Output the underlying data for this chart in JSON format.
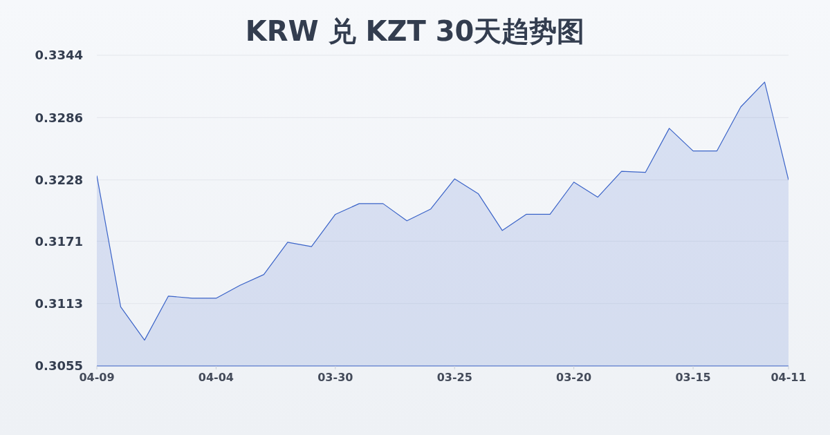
{
  "chart_data": {
    "type": "area",
    "title": "KRW 兑 KZT 30天趋势图",
    "categories": [
      "04-09",
      null,
      null,
      null,
      null,
      "04-04",
      null,
      null,
      null,
      null,
      "03-30",
      null,
      null,
      null,
      null,
      "03-25",
      null,
      null,
      null,
      null,
      "03-20",
      null,
      null,
      null,
      null,
      "03-15",
      null,
      null,
      null,
      "04-11"
    ],
    "values": [
      0.3232,
      0.311,
      0.3079,
      0.312,
      0.3118,
      0.3118,
      0.313,
      0.314,
      0.317,
      0.3166,
      0.3196,
      0.3206,
      0.3206,
      0.319,
      0.3201,
      0.3229,
      0.3215,
      0.3181,
      0.3196,
      0.3196,
      0.3226,
      0.3212,
      0.3236,
      0.3235,
      0.3276,
      0.3255,
      0.3255,
      0.3296,
      0.3319,
      0.3228
    ],
    "color": "#3a63c8",
    "ylim": [
      0.3055,
      0.3344
    ],
    "yticks": [
      0.3055,
      0.3113,
      0.3171,
      0.3228,
      0.3286,
      0.3344
    ],
    "grid": "y"
  }
}
